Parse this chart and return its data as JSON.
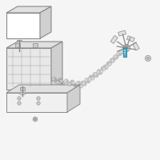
{
  "bg_color": "#f5f5f5",
  "line_color": "#888888",
  "highlight_color": "#4eb8d0",
  "dark_color": "#444444"
}
